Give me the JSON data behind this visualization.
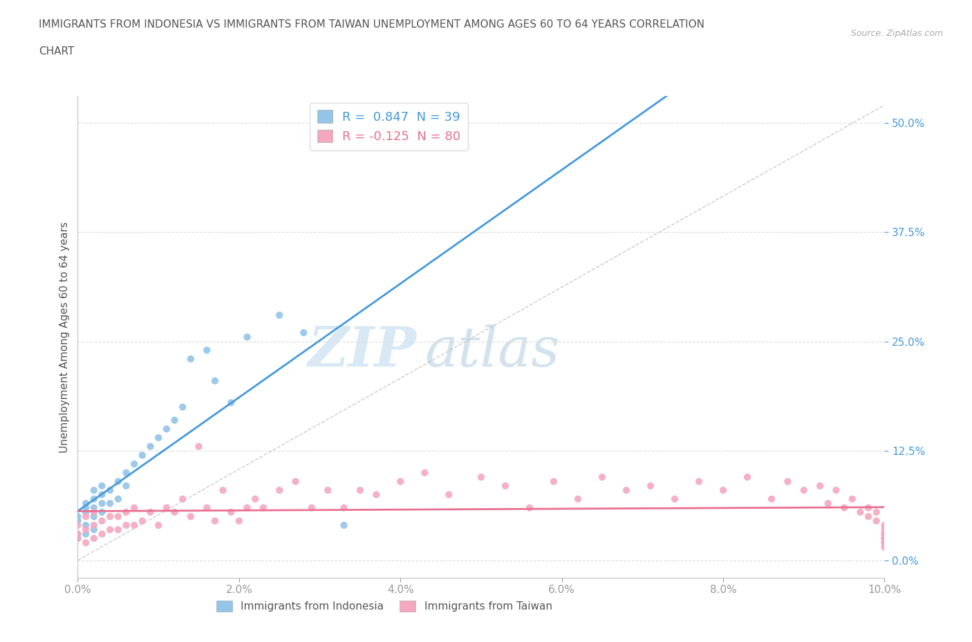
{
  "title_line1": "IMMIGRANTS FROM INDONESIA VS IMMIGRANTS FROM TAIWAN UNEMPLOYMENT AMONG AGES 60 TO 64 YEARS CORRELATION",
  "title_line2": "CHART",
  "source": "Source: ZipAtlas.com",
  "ylabel": "Unemployment Among Ages 60 to 64 years",
  "xlim": [
    0.0,
    0.1
  ],
  "ylim": [
    -0.02,
    0.53
  ],
  "xticks": [
    0.0,
    0.02,
    0.04,
    0.06,
    0.08,
    0.1
  ],
  "xticklabels": [
    "0.0%",
    "2.0%",
    "4.0%",
    "6.0%",
    "8.0%",
    "10.0%"
  ],
  "yticks": [
    0.0,
    0.125,
    0.25,
    0.375,
    0.5
  ],
  "yticklabels": [
    "0.0%",
    "12.5%",
    "25.0%",
    "37.5%",
    "50.0%"
  ],
  "indonesia_color": "#92c5e8",
  "taiwan_color": "#f4a8c0",
  "indonesia_line_color": "#4499dd",
  "taiwan_line_color": "#e87090",
  "indonesia_R": 0.847,
  "indonesia_N": 39,
  "taiwan_R": -0.125,
  "taiwan_N": 80,
  "watermark_ZIP": "ZIP",
  "watermark_atlas": "atlas",
  "background_color": "#ffffff",
  "grid_color": "#dddddd",
  "indonesia_x": [
    0.0,
    0.0,
    0.0,
    0.0,
    0.001,
    0.001,
    0.001,
    0.001,
    0.001,
    0.002,
    0.002,
    0.002,
    0.002,
    0.002,
    0.003,
    0.003,
    0.003,
    0.003,
    0.004,
    0.004,
    0.005,
    0.005,
    0.006,
    0.006,
    0.007,
    0.008,
    0.009,
    0.01,
    0.011,
    0.012,
    0.013,
    0.014,
    0.016,
    0.017,
    0.019,
    0.021,
    0.025,
    0.028,
    0.033
  ],
  "indonesia_y": [
    0.025,
    0.03,
    0.045,
    0.05,
    0.03,
    0.04,
    0.055,
    0.06,
    0.065,
    0.035,
    0.05,
    0.06,
    0.07,
    0.08,
    0.055,
    0.065,
    0.075,
    0.085,
    0.065,
    0.08,
    0.07,
    0.09,
    0.085,
    0.1,
    0.11,
    0.12,
    0.13,
    0.14,
    0.15,
    0.16,
    0.175,
    0.23,
    0.24,
    0.205,
    0.18,
    0.255,
    0.28,
    0.26,
    0.04
  ],
  "taiwan_x": [
    0.0,
    0.0,
    0.0,
    0.001,
    0.001,
    0.001,
    0.002,
    0.002,
    0.002,
    0.003,
    0.003,
    0.004,
    0.004,
    0.005,
    0.005,
    0.006,
    0.006,
    0.007,
    0.007,
    0.008,
    0.009,
    0.01,
    0.011,
    0.012,
    0.013,
    0.014,
    0.015,
    0.016,
    0.017,
    0.018,
    0.019,
    0.02,
    0.021,
    0.022,
    0.023,
    0.025,
    0.027,
    0.029,
    0.031,
    0.033,
    0.035,
    0.037,
    0.04,
    0.043,
    0.046,
    0.05,
    0.053,
    0.056,
    0.059,
    0.062,
    0.065,
    0.068,
    0.071,
    0.074,
    0.077,
    0.08,
    0.083,
    0.086,
    0.088,
    0.09,
    0.092,
    0.093,
    0.094,
    0.095,
    0.096,
    0.097,
    0.098,
    0.098,
    0.099,
    0.099,
    0.1,
    0.1,
    0.1,
    0.1,
    0.1,
    0.1,
    0.1,
    0.1,
    0.1,
    0.1
  ],
  "taiwan_y": [
    0.025,
    0.03,
    0.04,
    0.02,
    0.035,
    0.05,
    0.025,
    0.04,
    0.055,
    0.03,
    0.045,
    0.035,
    0.05,
    0.035,
    0.05,
    0.04,
    0.055,
    0.04,
    0.06,
    0.045,
    0.055,
    0.04,
    0.06,
    0.055,
    0.07,
    0.05,
    0.13,
    0.06,
    0.045,
    0.08,
    0.055,
    0.045,
    0.06,
    0.07,
    0.06,
    0.08,
    0.09,
    0.06,
    0.08,
    0.06,
    0.08,
    0.075,
    0.09,
    0.1,
    0.075,
    0.095,
    0.085,
    0.06,
    0.09,
    0.07,
    0.095,
    0.08,
    0.085,
    0.07,
    0.09,
    0.08,
    0.095,
    0.07,
    0.09,
    0.08,
    0.085,
    0.065,
    0.08,
    0.06,
    0.07,
    0.055,
    0.05,
    0.06,
    0.045,
    0.055,
    0.025,
    0.03,
    0.04,
    0.025,
    0.03,
    0.035,
    0.02,
    0.025,
    0.015,
    0.02
  ]
}
